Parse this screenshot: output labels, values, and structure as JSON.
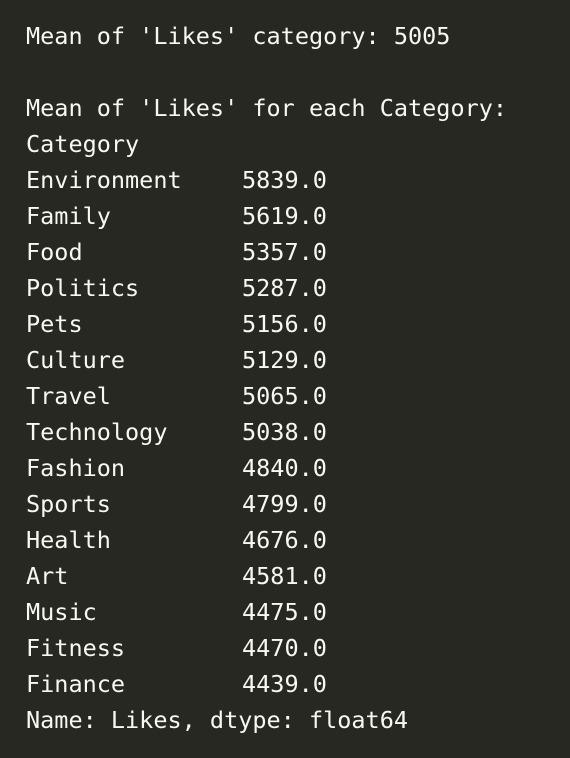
{
  "output": {
    "overall_mean_line": "Mean of 'Likes' category: 5005",
    "group_header_line": "Mean of 'Likes' for each Category:",
    "index_name": "Category",
    "rows": [
      {
        "category": "Environment",
        "value": "5839.0"
      },
      {
        "category": "Family",
        "value": "5619.0"
      },
      {
        "category": "Food",
        "value": "5357.0"
      },
      {
        "category": "Politics",
        "value": "5287.0"
      },
      {
        "category": "Pets",
        "value": "5156.0"
      },
      {
        "category": "Culture",
        "value": "5129.0"
      },
      {
        "category": "Travel",
        "value": "5065.0"
      },
      {
        "category": "Technology",
        "value": "5038.0"
      },
      {
        "category": "Fashion",
        "value": "4840.0"
      },
      {
        "category": "Sports",
        "value": "4799.0"
      },
      {
        "category": "Health",
        "value": "4676.0"
      },
      {
        "category": "Art",
        "value": "4581.0"
      },
      {
        "category": "Music",
        "value": "4475.0"
      },
      {
        "category": "Fitness",
        "value": "4470.0"
      },
      {
        "category": "Finance",
        "value": "4439.0"
      }
    ],
    "footer_line": "Name: Likes, dtype: float64"
  },
  "colors": {
    "background": "#272822",
    "text": "#f8f8f2"
  }
}
